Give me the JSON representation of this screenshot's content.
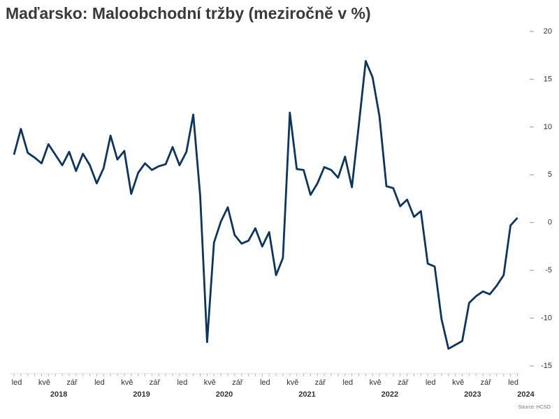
{
  "chart_data": {
    "type": "line",
    "title": "Maďarsko: Maloobchodní tržby (meziročně v %)",
    "source": "Source: HCSO",
    "categories": [
      "led",
      null,
      null,
      null,
      "kvě",
      null,
      null,
      null,
      "zář",
      null,
      null,
      null,
      "led",
      null,
      null,
      null,
      "kvě",
      null,
      null,
      null,
      "zář",
      null,
      null,
      null,
      "led",
      null,
      null,
      null,
      "kvě",
      null,
      null,
      null,
      "zář",
      null,
      null,
      null,
      "led",
      null,
      null,
      null,
      "kvě",
      null,
      null,
      null,
      "zář",
      null,
      null,
      null,
      "led",
      null,
      null,
      null,
      "kvě",
      null,
      null,
      null,
      "zář",
      null,
      null,
      null,
      "led",
      null,
      null,
      null,
      "kvě",
      null,
      null,
      null,
      "zář",
      null,
      null,
      null,
      "led",
      null
    ],
    "years": [
      "2018",
      "2019",
      "2020",
      "2021",
      "2022",
      "2023",
      "2024"
    ],
    "series": [
      {
        "name": "Maloobchodní tržby",
        "color": "#0d3561",
        "values": [
          7.1,
          9.8,
          7.3,
          6.8,
          6.2,
          8.2,
          7.1,
          6.0,
          7.4,
          5.4,
          7.2,
          6.0,
          4.1,
          5.7,
          9.1,
          6.6,
          7.5,
          3.0,
          5.2,
          6.2,
          5.5,
          5.9,
          6.1,
          7.9,
          6.0,
          7.4,
          11.3,
          2.8,
          -12.5,
          -2.1,
          0.1,
          1.6,
          -1.3,
          -2.2,
          -1.9,
          -0.6,
          -2.5,
          -1.0,
          -5.5,
          -3.7,
          11.5,
          5.6,
          5.5,
          2.9,
          4.1,
          5.8,
          5.5,
          4.7,
          6.9,
          3.7,
          10.2,
          16.9,
          15.2,
          11.1,
          3.8,
          3.6,
          1.7,
          2.4,
          0.6,
          1.2,
          -4.3,
          -4.6,
          -10.1,
          -13.2,
          -12.8,
          -12.4,
          -8.4,
          -7.7,
          -7.2,
          -7.5,
          -6.6,
          -5.5,
          -0.3,
          0.5
        ]
      }
    ],
    "ylim": [
      -15,
      20
    ],
    "yticks": [
      -15,
      -10,
      -5,
      0,
      5,
      10,
      15,
      20
    ],
    "grid": false
  }
}
